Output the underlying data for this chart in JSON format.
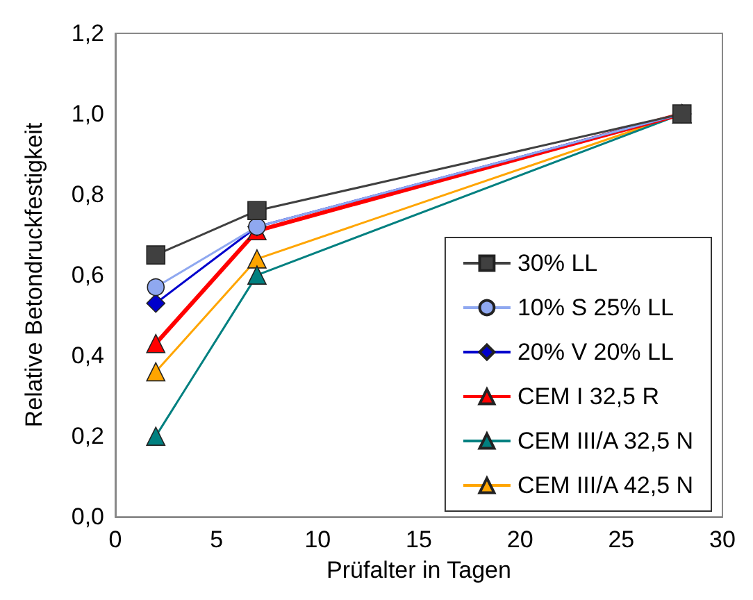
{
  "chart_data": {
    "type": "line",
    "xlabel": "Prüfalter in Tagen",
    "ylabel": "Relative Betondruckfestigkeit",
    "x": [
      2,
      7,
      28
    ],
    "series": [
      {
        "name": "30% LL",
        "color": "#404040",
        "marker": "square",
        "values": [
          0.65,
          0.76,
          1.0
        ]
      },
      {
        "name": "10% S 25% LL",
        "color": "#8fa8f0",
        "marker": "circle",
        "values": [
          0.57,
          0.72,
          1.0
        ]
      },
      {
        "name": "20% V 20% LL",
        "color": "#0000cc",
        "marker": "diamond",
        "values": [
          0.53,
          0.72,
          1.0
        ]
      },
      {
        "name": "CEM I 32,5 R",
        "color": "#ff0000",
        "marker": "triangle",
        "values": [
          0.43,
          0.71,
          1.0
        ]
      },
      {
        "name": "CEM III/A 32,5 N",
        "color": "#008080",
        "marker": "triangle",
        "values": [
          0.2,
          0.6,
          1.0
        ]
      },
      {
        "name": "CEM III/A 42,5 N",
        "color": "#ffa500",
        "marker": "triangle",
        "values": [
          0.36,
          0.64,
          1.0
        ]
      }
    ],
    "xlim": [
      0,
      30
    ],
    "xticks": [
      0,
      5,
      10,
      15,
      20,
      25,
      30
    ],
    "ylim": [
      0,
      1.2
    ],
    "yticks": [
      {
        "value": 0,
        "label": "0,0"
      },
      {
        "value": 0.2,
        "label": "0,2"
      },
      {
        "value": 0.4,
        "label": "0,4"
      },
      {
        "value": 0.6,
        "label": "0,6"
      },
      {
        "value": 0.8,
        "label": "0,8"
      },
      {
        "value": 1.0,
        "label": "1,0"
      },
      {
        "value": 1.2,
        "label": "1,2"
      }
    ],
    "grid": false,
    "legend": "bottom right",
    "line_style": "solid"
  }
}
